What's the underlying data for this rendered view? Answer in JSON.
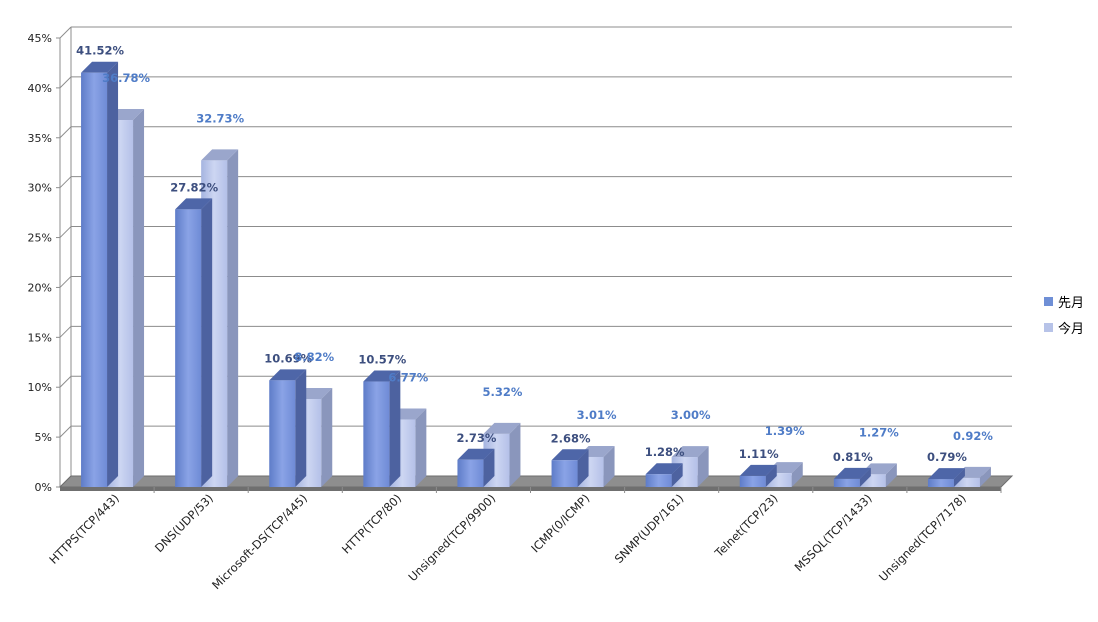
{
  "chart_data": {
    "type": "bar",
    "categories": [
      "HTTPS(TCP/443)",
      "DNS(UDP/53)",
      "Microsoft-DS(TCP/445)",
      "HTTP(TCP/80)",
      "Unsigned(TCP/9900)",
      "ICMP(0/ICMP)",
      "SNMP(UDP/161)",
      "Telnet(TCP/23)",
      "MSSQL(TCP/1433)",
      "Unsigned(TCP/7178)"
    ],
    "series": [
      {
        "name": "先月",
        "values": [
          41.52,
          27.82,
          10.69,
          10.57,
          2.73,
          2.68,
          1.28,
          1.11,
          0.81,
          0.79
        ],
        "labels": [
          "41.52%",
          "27.82%",
          "10.69%",
          "10.57%",
          "2.73%",
          "2.68%",
          "1.28%",
          "1.11%",
          "0.81%",
          "0.79%"
        ],
        "color": "#6f8fd6",
        "label_color": "#3d4f7f"
      },
      {
        "name": "今月",
        "values": [
          36.78,
          32.73,
          8.82,
          6.77,
          5.32,
          3.01,
          3.0,
          1.39,
          1.27,
          0.92
        ],
        "labels": [
          "36.78%",
          "32.73%",
          "8.82%",
          "6.77%",
          "5.32%",
          "3.01%",
          "3.00%",
          "1.39%",
          "1.27%",
          "0.92%"
        ],
        "color": "#b7c3e8",
        "label_color": "#4f7cc7"
      }
    ],
    "ylim": [
      0,
      45
    ],
    "yticks": [
      "0%",
      "5%",
      "10%",
      "15%",
      "20%",
      "25%",
      "30%",
      "35%",
      "40%",
      "45%"
    ],
    "grid": true,
    "legend_position": "right",
    "title": "",
    "xlabel": "",
    "ylabel": ""
  }
}
